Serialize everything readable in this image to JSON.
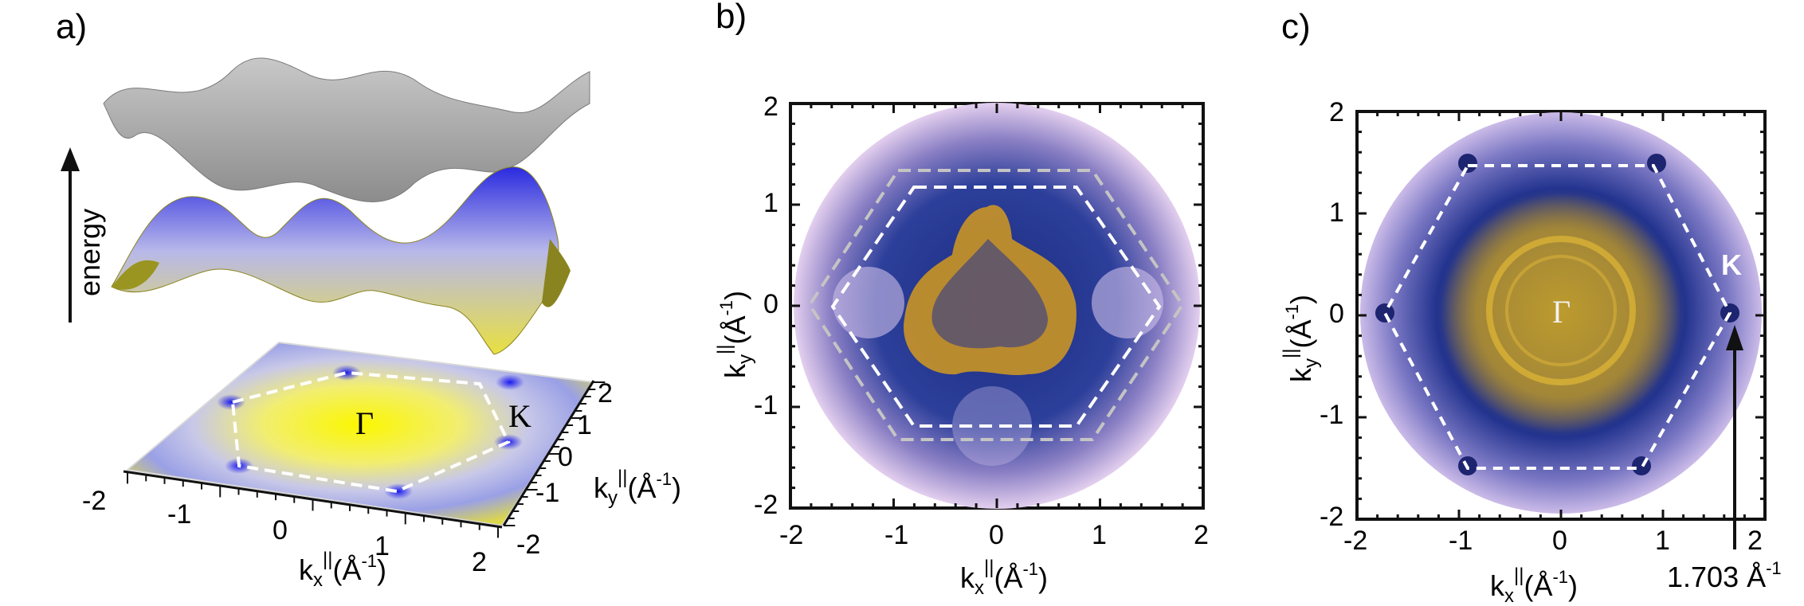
{
  "panels": [
    {
      "label": "a)",
      "energy_label": "energy",
      "gamma_label": "Γ",
      "k_label": "K",
      "kx_ticks": [
        "-2",
        "-1",
        "0",
        "1",
        "2"
      ],
      "ky_ticks": [
        "2",
        "1",
        "0",
        "-1",
        "-2"
      ],
      "xlabel": "kx||(Å-1)",
      "ylabel": "ky||(Å-1)"
    },
    {
      "label": "b)",
      "x_ticks": [
        "-2",
        "-1",
        "0",
        "1",
        "2"
      ],
      "y_ticks": [
        "2",
        "1",
        "0",
        "-1",
        "-2"
      ],
      "xlabel": "kx||(Å-1)",
      "ylabel": "ky||(Å-1)"
    },
    {
      "label": "c)",
      "x_ticks": [
        "-2",
        "-1",
        "0",
        "1",
        "2"
      ],
      "y_ticks": [
        "2",
        "1",
        "0",
        "-1",
        "-2"
      ],
      "xlabel": "kx||(Å-1)",
      "ylabel": "ky||(Å-1)",
      "gamma_label": "Γ",
      "k_label": "K",
      "annotation": "1.703 Å-1"
    }
  ],
  "chart_data": [
    {
      "type": "heatmap",
      "panel": "b)",
      "xlabel": "kx||(Å-1)",
      "ylabel": "ky||(Å-1)",
      "xlim": [
        -2,
        2
      ],
      "ylim": [
        -2,
        2
      ],
      "x_ticks": [
        -2,
        -1,
        0,
        1,
        2
      ],
      "y_ticks": [
        -2,
        -1,
        0,
        1,
        2
      ],
      "colors": {
        "high": "#e6a91a",
        "mid": "#1f2f8c",
        "low": "#d8c3e8"
      }
    },
    {
      "type": "heatmap",
      "panel": "c)",
      "xlabel": "kx||(Å-1)",
      "ylabel": "ky||(Å-1)",
      "xlim": [
        -2,
        2
      ],
      "ylim": [
        -2,
        2
      ],
      "x_ticks": [
        -2,
        -1,
        0,
        1,
        2
      ],
      "y_ticks": [
        -2,
        -1,
        0,
        1,
        2
      ],
      "annotation_value": 1.703,
      "colors": {
        "high": "#c9a32a",
        "mid": "#1f2f8c",
        "low": "#c9b7e6"
      }
    }
  ]
}
